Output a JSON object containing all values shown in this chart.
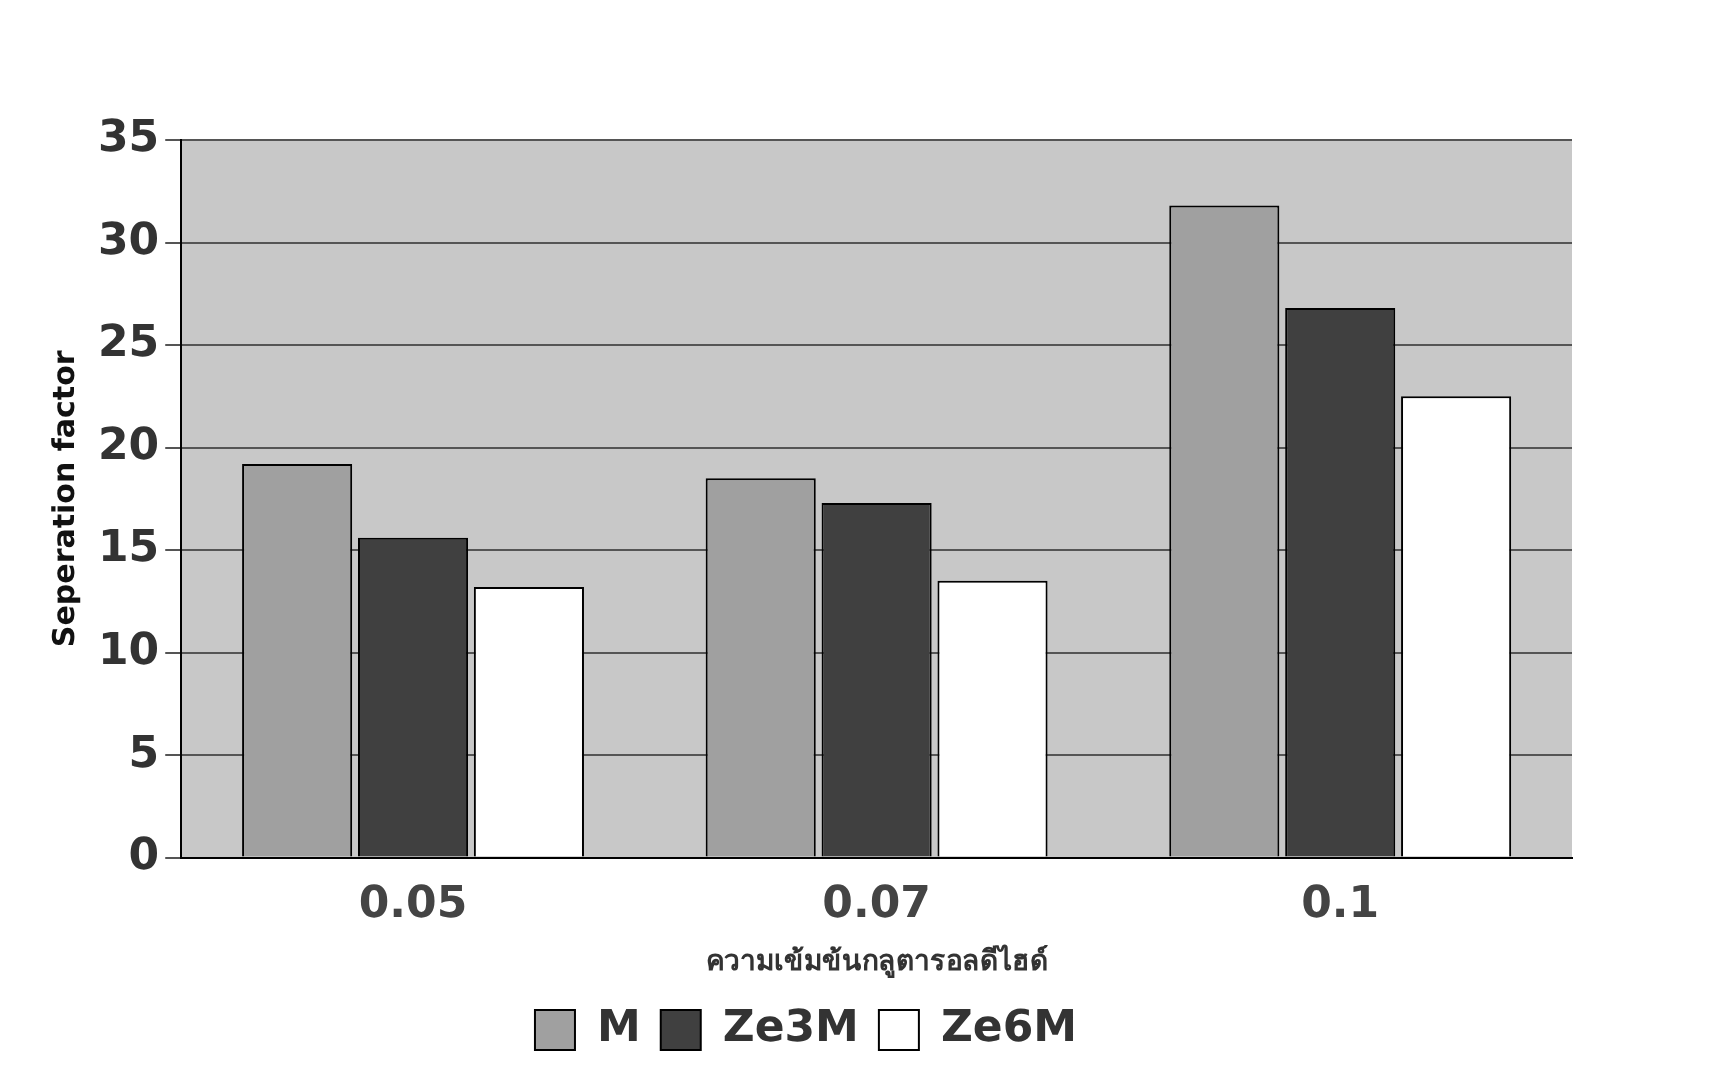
{
  "chart_data": {
    "type": "bar",
    "xlabel": "ความเข้มข้นกลูตารอลดีไฮด์",
    "ylabel": "Seperation factor",
    "categories": [
      "0.05",
      "0.07",
      "0.1"
    ],
    "series": [
      {
        "name": "M",
        "color": "#a0a0a0",
        "values": [
          19.2,
          18.5,
          31.8
        ]
      },
      {
        "name": "Ze3M",
        "color": "#404040",
        "values": [
          15.6,
          17.3,
          26.8
        ]
      },
      {
        "name": "Ze6M",
        "color": "#ffffff",
        "values": [
          13.2,
          13.5,
          22.5
        ]
      }
    ],
    "ylim": [
      0,
      35
    ],
    "yticks": [
      0,
      5,
      10,
      15,
      20,
      25,
      30,
      35
    ],
    "grid": "y",
    "legend": "bottom"
  }
}
